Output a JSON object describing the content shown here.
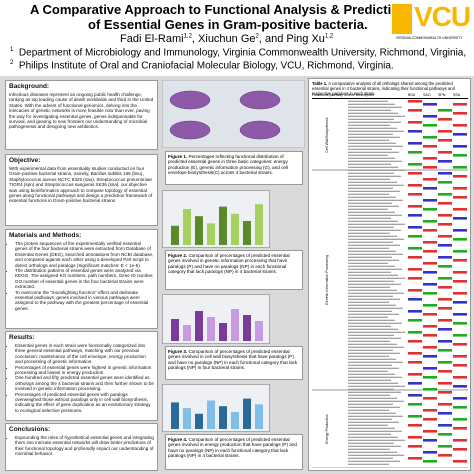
{
  "header": {
    "title_line1": "A Comparative Approach to Functional Analysis & Predicti",
    "title_line2": "of Essential Genes in Gram-positive bacteria.",
    "authors": "Fadi El-Rami",
    "sup1": "1,2",
    "authors2": ", Xiuchun Ge",
    "sup2": "2",
    "authors3": ", and Ping Xu",
    "sup3": "1,2",
    "affiliations": [
      {
        "mark": "1",
        "text": "Department of Microbiology and Immunology, Virginia Commonwealth University, Richmond, Virginia,"
      },
      {
        "mark": "2",
        "text": "Philips Institute of Oral and Craniofacial Molecular Biology, VCU, Richmond, Virginia."
      }
    ],
    "logo": "VCU",
    "logo_sub": "VIRGINIA COMMONWEALTH UNIVERSITY"
  },
  "sections": {
    "background": {
      "heading": "Background:",
      "text": "Infectious diseases represent an ongoing public health challenge, ranking as top leading cause of death worldwide and third in the United States. With the advent of functional genomics, delving into the intricacies of genetic networks is more feasible now than ever, paving the way for investigating essential genes, genes indispensable for survival, and gearing to new frontiers our understanding of microbial pathogenesis and designing new antibiotics."
    },
    "objective": {
      "heading": "Objective:",
      "text": "With experimental data from essentiality studies conducted on four Gram-positive bacterial strains, namely, Bacillus subtilis 168 (bsu), Staphylococcus aureus NCTC 8325 (sao), Streptococcus pneumoniae TIGR4 (spn) and Streptococcus sanguinis SK36 (ssa), our objective was using bioinformatics approach to compare topology of essential genes along functional pathways and design a prediction framework of essential functions in Gram-positive bacterial strains."
    },
    "methods": {
      "heading": "Materials and Methods:",
      "items": [
        "The protein sequences of the experimentally verified essential genes of the four bacterial strains were extracted from Database of Essential Genes (DEG), searched annotations from NCBI database, and compared against each other using a developed Perl script to detect orthologs and paralogs (Significant matches: E < 1e-5).",
        "The distribution patterns of essential genes were analyzed via KEGG. The assigned KO numbers, path numbers, Gene ID number, GO number of essential genes in the four bacterial strains were extracted.",
        "To overcome the “moonlighting function” effect and delineate essential pathways, genes involved in various pathways were assigned to the pathway with the greatest percentage of essential genes."
      ]
    },
    "results": {
      "heading": "Results:",
      "items": [
        "Essential genes in each strain were functionally categorized into three general essential pathways, matching with our previous conclusion: maintenance of the cell envelope, energy production and processing of genetic information.",
        "Percentages of essential genes were highest in genetic information processing and lowest in energy production.",
        "One hundred and fifty predicted essential genes were identified as orthologs among the 4 bacterial strains and then further shown to be involved in genetic information processing.",
        "Percentages of predicted essential genes with paralogs overweighed those without paralogs only in cell wall biosynthesis, indicating the effect of gene duplication as an evolutionary strategy to ecological selective pressures."
      ]
    },
    "conclusions": {
      "heading": "Conclusions:",
      "items": [
        "Expounding the roles of hypothetical essential genes and integrating them into intricate essential networks will draw better predictions of their functional topology and profoundly impact our understanding of microbial behavior."
      ]
    }
  },
  "figures": [
    {
      "label": "Figure 1.",
      "caption": "Percentages reflecting functional distribution of predicted essential genes in three basic categories: energy production (E), genetic information processing (G), and cell envelope biosynthesis(C) across 4 bacterial strains."
    },
    {
      "label": "Figure 2.",
      "caption": "Comparison of percentages of predicted essential genes involved in genetic information processing that have paralogs (P) and have no paralogs (NP) in each functional category that lack paralogs (NP) in 4 bacterial strains."
    },
    {
      "label": "Figure 3.",
      "caption": "Comparison of percentages of predicted essential genes involved in cell wall biosynthesis that have paralogs (P) and have no paralogs (NP) in each functional category that lack paralogs (NP) in four bacterial strains."
    },
    {
      "label": "Figure 4.",
      "caption": "Comparison of percentages of predicted essential genes involved in energy production that have paralogs (P) and have no paralogs (NP) in each functional category that lack paralogs (NP) in 4 bacterial strains."
    }
  ],
  "table": {
    "label": "Table 1.",
    "caption": "A comparative analysis of all orthologs shared among the predicted essential genes in 4 bacterial strains, indicating their functional pathways and respective paralogs in each strain.",
    "headers": [
      "Functional pathway",
      "Gene Description",
      "BSU",
      "SAO",
      "SPN",
      "SSA"
    ],
    "groups": [
      "Cell Wall Biosynthesis",
      "Genetic Information Processing",
      "Energy Production"
    ]
  }
}
